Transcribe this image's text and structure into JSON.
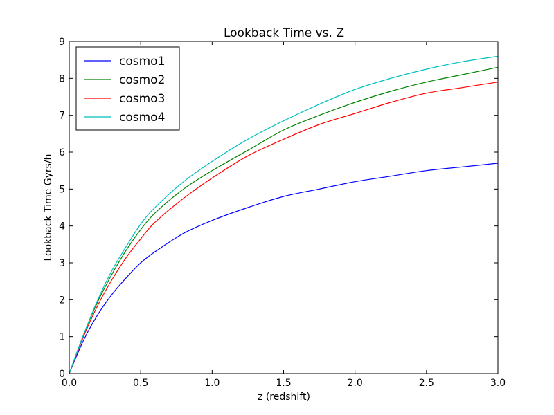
{
  "chart_data": {
    "type": "line",
    "title": "Lookback Time vs. Z",
    "xlabel": "z (redshift)",
    "ylabel": "Lookback Time Gyrs/h",
    "xlim": [
      0,
      3
    ],
    "ylim": [
      0,
      9
    ],
    "x_ticks": [
      "0.0",
      "0.5",
      "1.0",
      "1.5",
      "2.0",
      "2.5",
      "3.0"
    ],
    "y_ticks": [
      "0",
      "1",
      "2",
      "3",
      "4",
      "5",
      "6",
      "7",
      "8",
      "9"
    ],
    "grid": false,
    "legend_position": "top-left",
    "x": [
      0,
      0.1,
      0.2,
      0.3,
      0.4,
      0.5,
      0.6,
      0.8,
      1.0,
      1.25,
      1.5,
      1.75,
      2.0,
      2.25,
      2.5,
      2.75,
      3.0
    ],
    "series": [
      {
        "name": "cosmo1",
        "color": "#0000ff",
        "values": [
          0,
          0.9,
          1.6,
          2.15,
          2.6,
          3.0,
          3.3,
          3.8,
          4.15,
          4.5,
          4.8,
          5.0,
          5.2,
          5.35,
          5.5,
          5.6,
          5.7
        ]
      },
      {
        "name": "cosmo2",
        "color": "#008000",
        "values": [
          0,
          1.05,
          1.95,
          2.7,
          3.35,
          3.9,
          4.35,
          5.0,
          5.5,
          6.05,
          6.6,
          7.0,
          7.35,
          7.65,
          7.9,
          8.1,
          8.3
        ]
      },
      {
        "name": "cosmo3",
        "color": "#ff0000",
        "values": [
          0,
          1.0,
          1.85,
          2.55,
          3.15,
          3.65,
          4.1,
          4.75,
          5.3,
          5.9,
          6.35,
          6.75,
          7.05,
          7.35,
          7.6,
          7.75,
          7.9
        ]
      },
      {
        "name": "cosmo4",
        "color": "#00bfbf",
        "values": [
          0,
          1.05,
          2.0,
          2.8,
          3.45,
          4.05,
          4.5,
          5.2,
          5.75,
          6.35,
          6.85,
          7.3,
          7.7,
          8.0,
          8.25,
          8.45,
          8.6
        ]
      }
    ]
  }
}
